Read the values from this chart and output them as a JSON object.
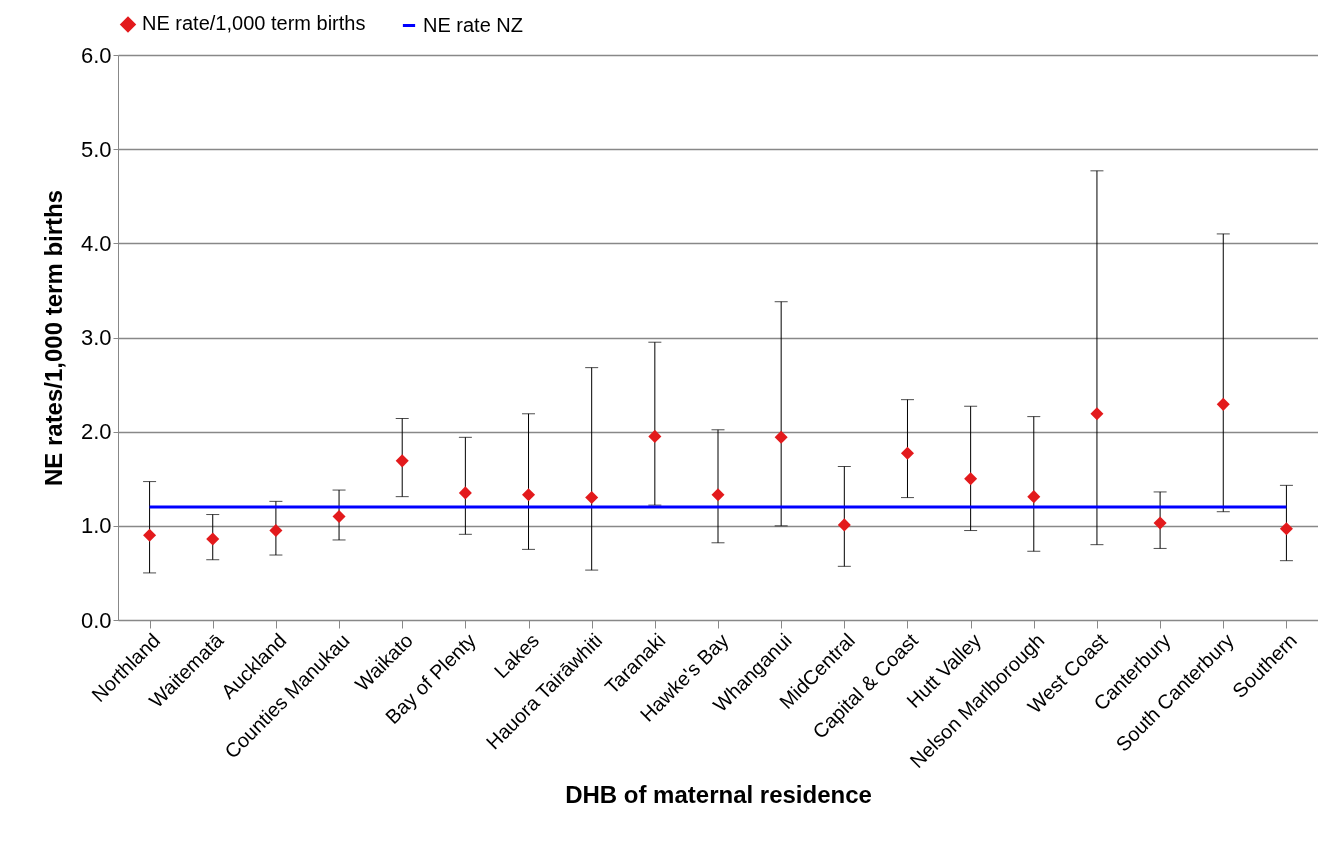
{
  "chart_data": {
    "type": "scatter",
    "xlabel": "DHB of maternal residence",
    "ylabel": "NE rates/1,000 term births",
    "categories": [
      "Northland",
      "Waitematā",
      "Auckland",
      "Counties Manukau",
      "Waikato",
      "Bay of Plenty",
      "Lakes",
      "Hauora Tairāwhiti",
      "Taranaki",
      "Hawke's Bay",
      "Whanganui",
      "MidCentral",
      "Capital & Coast",
      "Hutt Valley",
      "Nelson Marlborough",
      "West Coast",
      "Canterbury",
      "South Canterbury",
      "Southern"
    ],
    "series": [
      {
        "name": "NE rate/1,000 term births",
        "color": "#e31a1c",
        "marker": "diamond",
        "values": [
          0.9,
          0.86,
          0.95,
          1.1,
          1.69,
          1.35,
          1.33,
          1.3,
          1.95,
          1.33,
          1.94,
          1.01,
          1.77,
          1.5,
          1.31,
          2.19,
          1.03,
          2.29,
          0.97
        ],
        "errors": [
          [
            0.5,
            1.47
          ],
          [
            0.64,
            1.12
          ],
          [
            0.69,
            1.26
          ],
          [
            0.85,
            1.38
          ],
          [
            1.31,
            2.14
          ],
          [
            0.91,
            1.94
          ],
          [
            0.75,
            2.19
          ],
          [
            0.53,
            2.68
          ],
          [
            1.22,
            2.95
          ],
          [
            0.82,
            2.02
          ],
          [
            1.0,
            3.38
          ],
          [
            0.57,
            1.63
          ],
          [
            1.3,
            2.34
          ],
          [
            0.95,
            2.27
          ],
          [
            0.73,
            2.16
          ],
          [
            0.8,
            4.77
          ],
          [
            0.76,
            1.36
          ],
          [
            1.15,
            4.1
          ],
          [
            0.63,
            1.43
          ]
        ]
      },
      {
        "name": "NE rate NZ",
        "type": "line",
        "color": "#0000ff",
        "line_style": "solid",
        "marker": "none",
        "values": [
          1.2,
          1.2,
          1.2,
          1.2,
          1.2,
          1.2,
          1.2,
          1.2,
          1.2,
          1.2,
          1.2,
          1.2,
          1.2,
          1.2,
          1.2,
          1.2,
          1.2,
          1.2,
          1.2
        ]
      }
    ],
    "ylim": [
      0,
      6
    ],
    "yticks": [
      {
        "value": 0,
        "label": "0.0"
      },
      {
        "value": 1,
        "label": "1.0"
      },
      {
        "value": 2,
        "label": "2.0"
      },
      {
        "value": 3,
        "label": "3.0"
      },
      {
        "value": 4,
        "label": "4.0"
      },
      {
        "value": 5,
        "label": "5.0"
      },
      {
        "value": 6,
        "label": "6.0"
      }
    ],
    "grid": "y",
    "legend": "top"
  }
}
